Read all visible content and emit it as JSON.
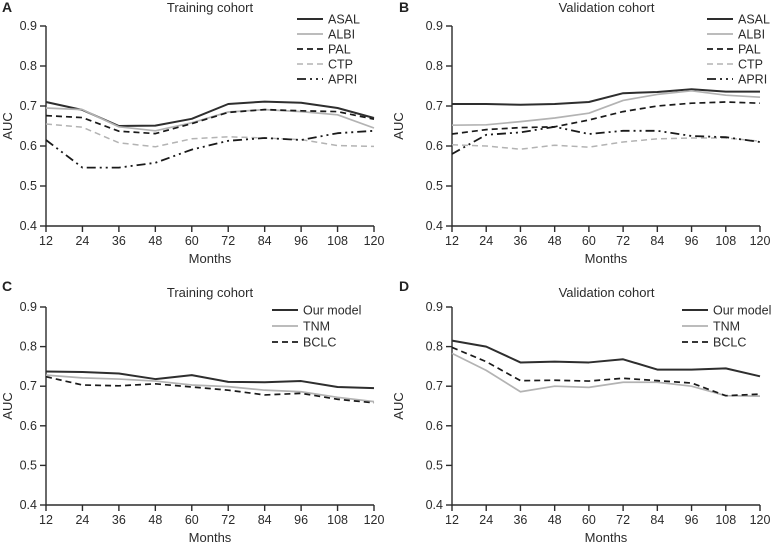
{
  "figure": {
    "type": "multi-panel-line-figure",
    "axis_color": "#2b2b2b",
    "background": "#ffffff",
    "dark_line_color": "#2e2e2e",
    "black_line_color": "#1a1a1a",
    "gray_line_color": "#b3b3b3"
  },
  "chart_data": [
    {
      "id": "A",
      "letter": "A",
      "type": "line",
      "title": "Training cohort",
      "xlabel": "Months",
      "ylabel": "AUC",
      "xlim": [
        12,
        120
      ],
      "ylim": [
        0.4,
        0.9
      ],
      "x": [
        12,
        24,
        36,
        48,
        60,
        72,
        84,
        96,
        108,
        120
      ],
      "yticks": [
        0.4,
        0.5,
        0.6,
        0.7,
        0.8,
        0.9
      ],
      "grid": false,
      "legend_position": "top-right",
      "series": [
        {
          "name": "ASAL",
          "color": "#2e2e2e",
          "style": "solid",
          "width": 2,
          "values": [
            0.71,
            0.69,
            0.65,
            0.651,
            0.668,
            0.705,
            0.711,
            0.708,
            0.695,
            0.67
          ]
        },
        {
          "name": "ALBI",
          "color": "#b3b3b3",
          "style": "solid",
          "width": 1.7,
          "values": [
            0.695,
            0.691,
            0.648,
            0.638,
            0.658,
            0.685,
            0.691,
            0.686,
            0.678,
            0.645
          ]
        },
        {
          "name": "PAL",
          "color": "#1a1a1a",
          "style": "dashed",
          "width": 1.7,
          "values": [
            0.676,
            0.671,
            0.637,
            0.631,
            0.656,
            0.684,
            0.691,
            0.688,
            0.686,
            0.667
          ]
        },
        {
          "name": "CTP",
          "color": "#b3b3b3",
          "style": "dashed",
          "width": 1.5,
          "values": [
            0.655,
            0.647,
            0.608,
            0.598,
            0.618,
            0.623,
            0.62,
            0.616,
            0.601,
            0.599
          ]
        },
        {
          "name": "APRI",
          "color": "#1a1a1a",
          "style": "dashdotdot",
          "width": 1.8,
          "values": [
            0.615,
            0.546,
            0.546,
            0.558,
            0.591,
            0.613,
            0.62,
            0.615,
            0.632,
            0.638
          ]
        }
      ]
    },
    {
      "id": "B",
      "letter": "B",
      "type": "line",
      "title": "Validation cohort",
      "xlabel": "Months",
      "ylabel": "AUC",
      "xlim": [
        12,
        120
      ],
      "ylim": [
        0.4,
        0.9
      ],
      "x": [
        12,
        24,
        36,
        48,
        60,
        72,
        84,
        96,
        108,
        120
      ],
      "yticks": [
        0.4,
        0.5,
        0.6,
        0.7,
        0.8,
        0.9
      ],
      "grid": false,
      "legend_position": "top-right",
      "series": [
        {
          "name": "ASAL",
          "color": "#2e2e2e",
          "style": "solid",
          "width": 2,
          "values": [
            0.705,
            0.705,
            0.703,
            0.705,
            0.71,
            0.732,
            0.735,
            0.742,
            0.736,
            0.736
          ]
        },
        {
          "name": "ALBI",
          "color": "#b3b3b3",
          "style": "solid",
          "width": 1.7,
          "values": [
            0.652,
            0.653,
            0.661,
            0.67,
            0.682,
            0.714,
            0.729,
            0.738,
            0.727,
            0.722
          ]
        },
        {
          "name": "PAL",
          "color": "#1a1a1a",
          "style": "dashed",
          "width": 1.7,
          "values": [
            0.63,
            0.641,
            0.646,
            0.648,
            0.665,
            0.686,
            0.7,
            0.707,
            0.71,
            0.707
          ]
        },
        {
          "name": "CTP",
          "color": "#b3b3b3",
          "style": "dashed",
          "width": 1.5,
          "values": [
            0.603,
            0.6,
            0.592,
            0.602,
            0.597,
            0.61,
            0.618,
            0.62,
            0.62,
            0.612
          ]
        },
        {
          "name": "APRI",
          "color": "#1a1a1a",
          "style": "dashdotdot",
          "width": 1.8,
          "values": [
            0.58,
            0.628,
            0.634,
            0.648,
            0.63,
            0.638,
            0.638,
            0.625,
            0.622,
            0.61
          ]
        }
      ]
    },
    {
      "id": "C",
      "letter": "C",
      "type": "line",
      "title": "Training cohort",
      "xlabel": "Months",
      "ylabel": "AUC",
      "xlim": [
        12,
        120
      ],
      "ylim": [
        0.4,
        0.9
      ],
      "x": [
        12,
        24,
        36,
        48,
        60,
        72,
        84,
        96,
        108,
        120
      ],
      "yticks": [
        0.4,
        0.5,
        0.6,
        0.7,
        0.8,
        0.9
      ],
      "grid": false,
      "legend_position": "top-right",
      "series": [
        {
          "name": "Our model",
          "color": "#2e2e2e",
          "style": "solid",
          "width": 2,
          "values": [
            0.737,
            0.736,
            0.732,
            0.718,
            0.728,
            0.711,
            0.71,
            0.713,
            0.698,
            0.695
          ]
        },
        {
          "name": "TNM",
          "color": "#b3b3b3",
          "style": "solid",
          "width": 1.7,
          "values": [
            0.728,
            0.721,
            0.718,
            0.713,
            0.703,
            0.699,
            0.69,
            0.686,
            0.672,
            0.661
          ]
        },
        {
          "name": "BCLC",
          "color": "#1a1a1a",
          "style": "dashed",
          "width": 1.7,
          "values": [
            0.724,
            0.703,
            0.701,
            0.706,
            0.698,
            0.69,
            0.678,
            0.682,
            0.667,
            0.658
          ]
        }
      ]
    },
    {
      "id": "D",
      "letter": "D",
      "type": "line",
      "title": "Validation cohort",
      "xlabel": "Months",
      "ylabel": "AUC",
      "xlim": [
        12,
        120
      ],
      "ylim": [
        0.4,
        0.9
      ],
      "x": [
        12,
        24,
        36,
        48,
        60,
        72,
        84,
        96,
        108,
        120
      ],
      "yticks": [
        0.4,
        0.5,
        0.6,
        0.7,
        0.8,
        0.9
      ],
      "grid": false,
      "legend_position": "top-right",
      "series": [
        {
          "name": "Our model",
          "color": "#2e2e2e",
          "style": "solid",
          "width": 2,
          "values": [
            0.815,
            0.8,
            0.76,
            0.762,
            0.76,
            0.768,
            0.742,
            0.742,
            0.745,
            0.725
          ]
        },
        {
          "name": "TNM",
          "color": "#b3b3b3",
          "style": "solid",
          "width": 1.7,
          "values": [
            0.783,
            0.74,
            0.686,
            0.7,
            0.697,
            0.71,
            0.71,
            0.7,
            0.676,
            0.675
          ]
        },
        {
          "name": "BCLC",
          "color": "#1a1a1a",
          "style": "dashed",
          "width": 1.7,
          "values": [
            0.798,
            0.762,
            0.714,
            0.715,
            0.713,
            0.72,
            0.714,
            0.708,
            0.676,
            0.68
          ]
        }
      ]
    }
  ]
}
